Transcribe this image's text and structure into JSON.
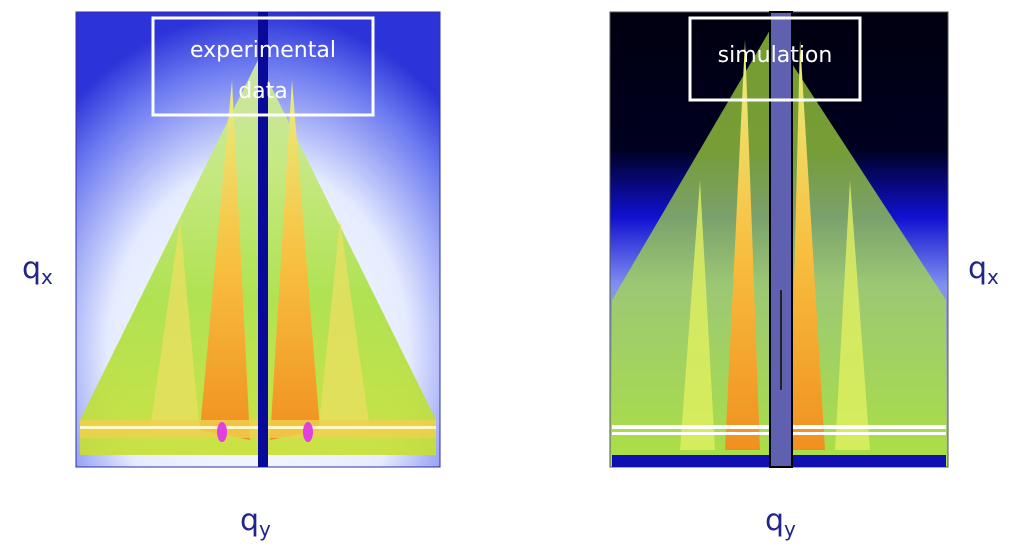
{
  "panels": [
    {
      "label_lines": [
        "experimental",
        "data"
      ],
      "y_axis": {
        "symbol": "q",
        "subscript": "x"
      },
      "x_axis": {
        "symbol": "q",
        "subscript": "y"
      }
    },
    {
      "label_lines": [
        "simulation"
      ],
      "y_axis": {
        "symbol": "q",
        "subscript": "x"
      },
      "x_axis": {
        "symbol": "q",
        "subscript": "y"
      }
    }
  ]
}
